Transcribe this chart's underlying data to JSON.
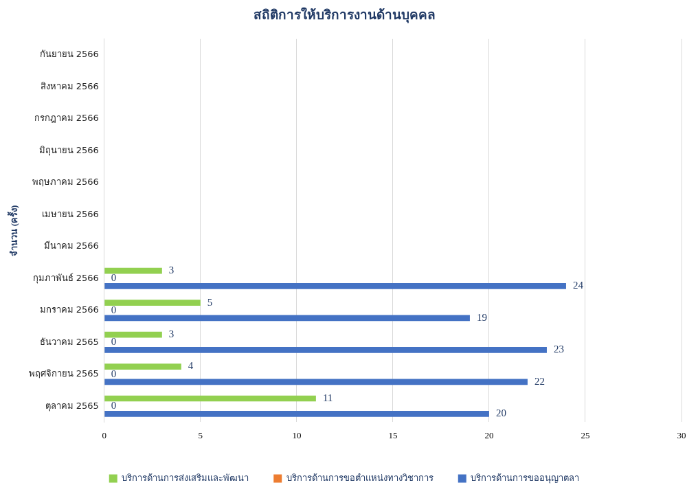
{
  "chart_data": {
    "type": "bar",
    "orientation": "horizontal",
    "title": "สถิติการให้บริการงานด้านบุคคล",
    "ylabel": "จำนวน (ครั้ง)",
    "categories": [
      "กันยายน 2566",
      "สิงหาคม 2566",
      "กรกฎาคม 2566",
      "มิถุนายน 2566",
      "พฤษภาคม 2566",
      "เมษายน 2566",
      "มีนาคม 2566",
      "กุมภาพันธ์ 2566",
      "มกราคม 2566",
      "ธันวาคม 2565",
      "พฤศจิกายน 2565",
      "ตุลาคม 2565"
    ],
    "series": [
      {
        "name": "บริการด้านการส่งเสริมและพัฒนา",
        "color": "#92d050",
        "values": [
          null,
          null,
          null,
          null,
          null,
          null,
          null,
          3,
          5,
          3,
          4,
          11
        ]
      },
      {
        "name": "บริการด้านการขอตำแหน่งทางวิชาการ",
        "color": "#ed7d31",
        "values": [
          null,
          null,
          null,
          null,
          null,
          null,
          null,
          0,
          0,
          0,
          0,
          0
        ]
      },
      {
        "name": "บริการด้านการขออนุญาตลา",
        "color": "#4472c4",
        "values": [
          null,
          null,
          null,
          null,
          null,
          null,
          null,
          24,
          19,
          23,
          22,
          20
        ]
      }
    ],
    "xlim": [
      0,
      30
    ],
    "xticks": [
      0,
      5,
      10,
      15,
      20,
      25,
      30
    ],
    "grid": "x",
    "legend": "bottom",
    "data_labels": true
  }
}
